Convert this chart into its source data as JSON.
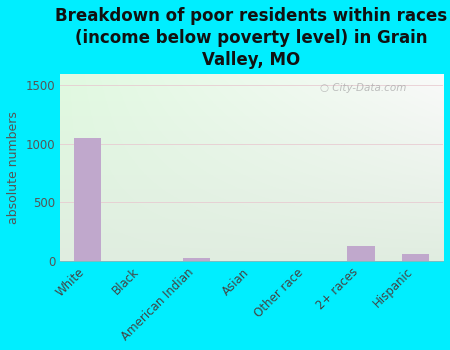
{
  "title": "Breakdown of poor residents within races\n(income below poverty level) in Grain\nValley, MO",
  "ylabel": "absolute numbers",
  "categories": [
    "White",
    "Black",
    "American Indian",
    "Asian",
    "Other race",
    "2+ races",
    "Hispanic"
  ],
  "values": [
    1050,
    0,
    25,
    0,
    0,
    130,
    60
  ],
  "bar_color": "#c0a8cc",
  "ylim": [
    0,
    1600
  ],
  "yticks": [
    0,
    500,
    1000,
    1500
  ],
  "bg_outer": "#00eeff",
  "grid_color": "#e8c8d0",
  "title_fontsize": 12,
  "ylabel_fontsize": 9,
  "tick_fontsize": 8.5,
  "watermark": "City-Data.com"
}
